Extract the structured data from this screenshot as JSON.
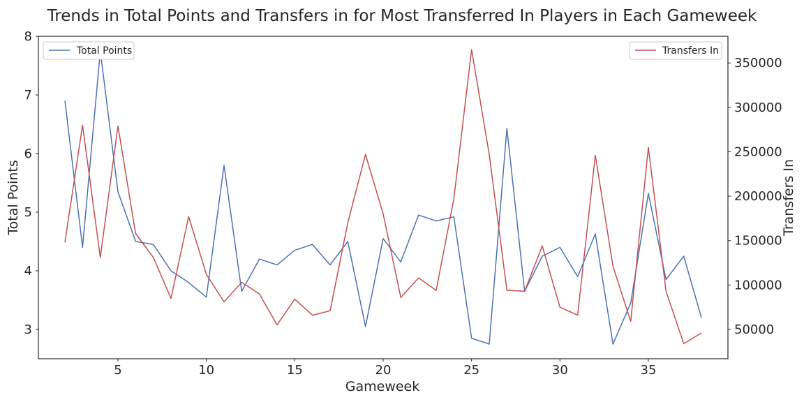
{
  "chart_data": {
    "type": "line",
    "title": "Trends in Total Points and Transfers in for Most Transferred In Players in Each Gameweek",
    "xlabel": "Gameweek",
    "ylabel_left": "Total Points",
    "ylabel_right": "Transfers In",
    "x": [
      2,
      3,
      4,
      5,
      6,
      7,
      8,
      9,
      10,
      11,
      12,
      13,
      14,
      15,
      16,
      17,
      18,
      19,
      20,
      21,
      22,
      23,
      24,
      25,
      26,
      27,
      28,
      29,
      30,
      31,
      32,
      33,
      34,
      35,
      36,
      37,
      38
    ],
    "xlim": [
      0.5,
      39.5
    ],
    "ylim_left": [
      2.5,
      8
    ],
    "ylim_right": [
      17000,
      380000
    ],
    "x_ticks": [
      5,
      10,
      15,
      20,
      25,
      30,
      35
    ],
    "y_ticks_left": [
      3,
      4,
      5,
      6,
      7,
      8
    ],
    "y_ticks_right": [
      50000,
      100000,
      150000,
      200000,
      250000,
      300000,
      350000
    ],
    "grid": false,
    "series": [
      {
        "name": "Total Points",
        "axis": "left",
        "color": "#4c72b0",
        "legend_position": "top-left",
        "values": [
          6.9,
          4.4,
          7.75,
          5.35,
          4.5,
          4.45,
          4.0,
          3.8,
          3.55,
          5.8,
          3.65,
          4.2,
          4.1,
          4.35,
          4.45,
          4.1,
          4.5,
          3.05,
          4.55,
          4.15,
          4.95,
          4.85,
          4.92,
          2.85,
          2.75,
          6.43,
          3.65,
          4.25,
          4.4,
          3.9,
          4.63,
          2.75,
          3.45,
          5.32,
          3.85,
          4.25,
          3.2
        ]
      },
      {
        "name": "Transfers In",
        "axis": "right",
        "color": "#c44e52",
        "legend_position": "top-right",
        "values": [
          148000,
          280000,
          131000,
          279000,
          158000,
          131000,
          85000,
          177000,
          112000,
          81000,
          103000,
          90000,
          55000,
          84000,
          66000,
          71000,
          170000,
          247000,
          180000,
          86000,
          108000,
          94000,
          197000,
          365000,
          247000,
          94000,
          93000,
          144000,
          75000,
          66000,
          246000,
          121000,
          59000,
          255000,
          93000,
          34000,
          46000
        ]
      }
    ]
  }
}
